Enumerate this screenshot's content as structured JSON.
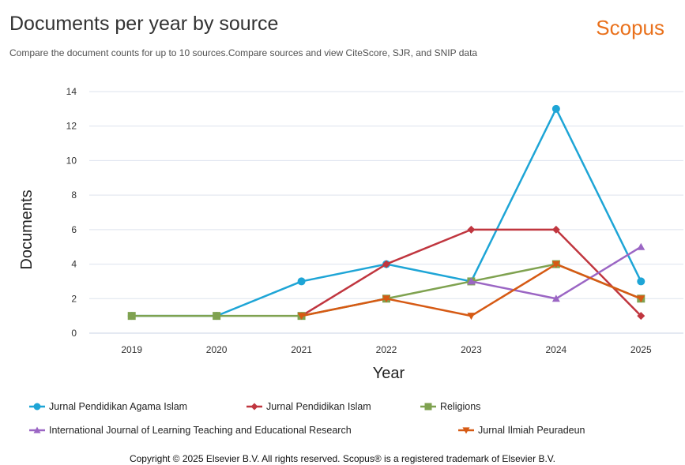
{
  "header": {
    "title": "Documents per year by source",
    "subtitle": "Compare the document counts for up to 10 sources.Compare sources and view CiteScore, SJR, and SNIP data",
    "brand": "Scopus"
  },
  "footer": {
    "copyright": "Copyright © 2025 Elsevier B.V. All rights reserved. Scopus® is a registered trademark of Elsevier B.V."
  },
  "chart_data": {
    "type": "line",
    "xlabel": "Year",
    "ylabel": "Documents",
    "ylim": [
      0,
      14
    ],
    "yticks": [
      0,
      2,
      4,
      6,
      8,
      10,
      12,
      14
    ],
    "grid": true,
    "legend": "bottom",
    "categories": [
      "2019",
      "2020",
      "2021",
      "2022",
      "2023",
      "2024",
      "2025"
    ],
    "series": [
      {
        "name": "Jurnal Pendidikan Agama Islam",
        "color": "#1ea5d6",
        "marker": "circle",
        "values": [
          1,
          1,
          3,
          4,
          3,
          13,
          3
        ]
      },
      {
        "name": "Jurnal Pendidikan Islam",
        "color": "#c0363f",
        "marker": "diamond",
        "values": [
          null,
          null,
          1,
          4,
          6,
          6,
          1
        ]
      },
      {
        "name": "Religions",
        "color": "#7fa250",
        "marker": "square",
        "values": [
          1,
          1,
          1,
          2,
          3,
          4,
          2
        ]
      },
      {
        "name": "International Journal of Learning Teaching and Educational Research",
        "color": "#9b66c4",
        "marker": "triangle-up",
        "values": [
          null,
          null,
          null,
          null,
          3,
          2,
          5
        ]
      },
      {
        "name": "Jurnal Ilmiah Peuradeun",
        "color": "#d65a14",
        "marker": "triangle-down",
        "values": [
          null,
          null,
          1,
          2,
          1,
          4,
          2
        ]
      }
    ]
  }
}
